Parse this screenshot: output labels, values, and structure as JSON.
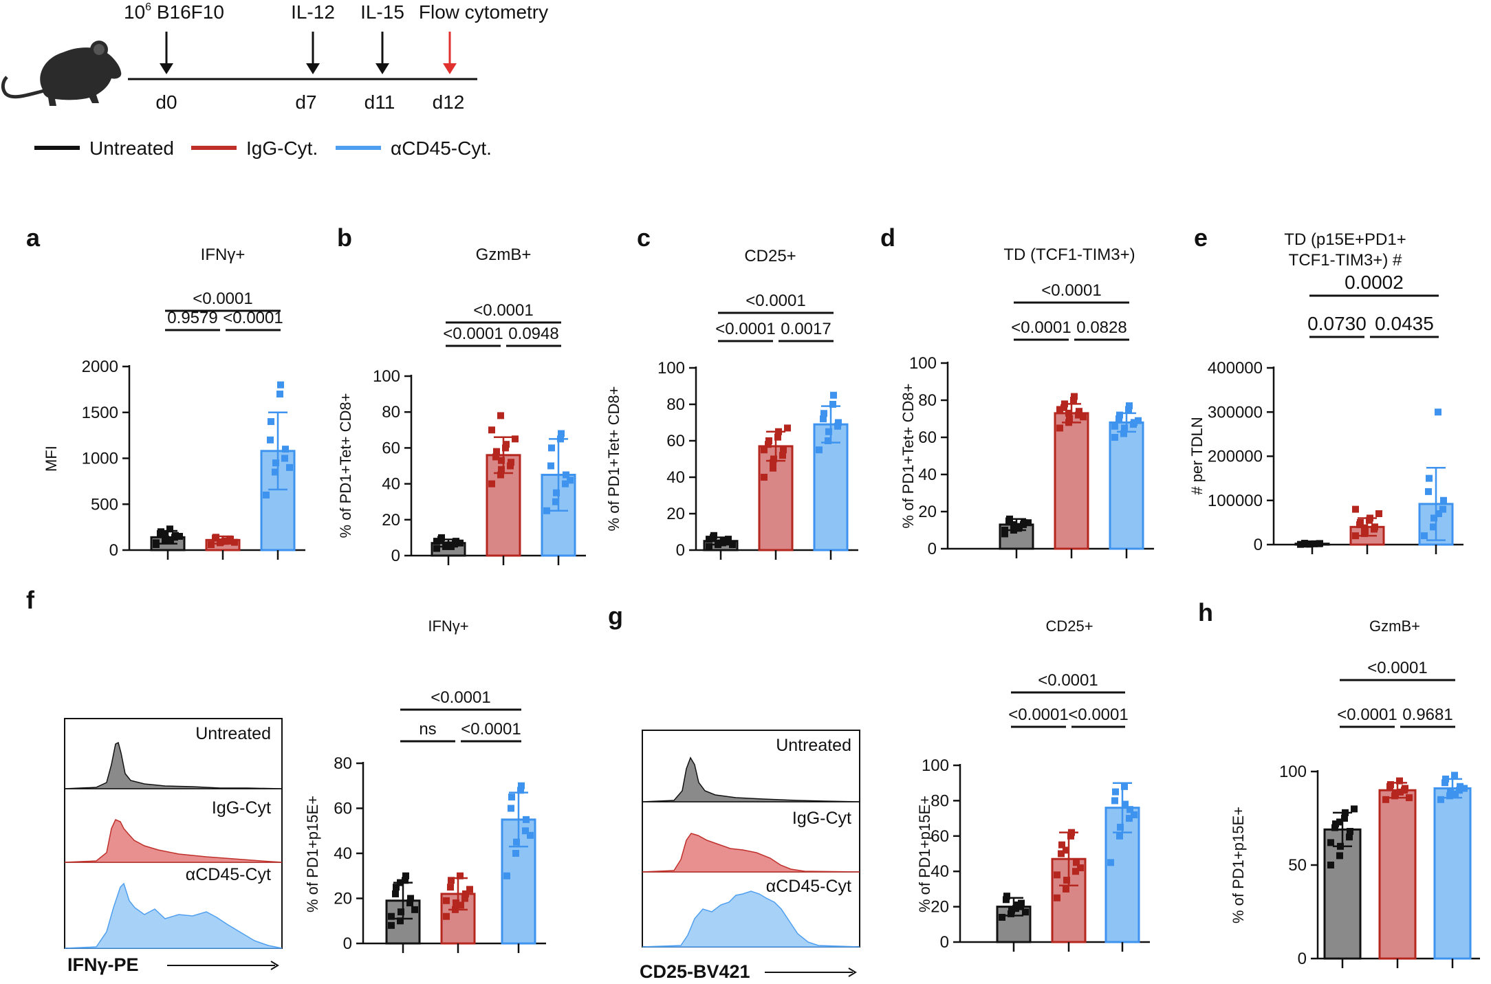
{
  "timeline": {
    "events": [
      {
        "label_base": "10",
        "label_sup": "6",
        "label_rest": " B16F10",
        "day": "d0",
        "color": "#111111"
      },
      {
        "label": "IL-12",
        "day": "d7",
        "color": "#111111"
      },
      {
        "label": "IL-15",
        "day": "d11",
        "color": "#111111"
      },
      {
        "label": "Flow cytometry",
        "day": "d12",
        "color": "#e0312f"
      }
    ]
  },
  "legend": [
    {
      "name": "Untreated",
      "color": "#111111"
    },
    {
      "name": "IgG-Cyt.",
      "color": "#c0302b"
    },
    {
      "name": "αCD45-Cyt.",
      "color": "#4f9ff0"
    }
  ],
  "colors": {
    "untreated_fill": "#8a8a8a",
    "untreated_edge": "#111111",
    "igg_fill": "#d98686",
    "igg_edge": "#b5261f",
    "acd45_fill": "#8ec3f5",
    "acd45_edge": "#3d93ee"
  },
  "histograms": [
    {
      "panel": "f",
      "labels": [
        "Untreated",
        "IgG-Cyt",
        "αCD45-Cyt"
      ],
      "xlabel": "IFNγ-PE"
    },
    {
      "panel": "g",
      "labels": [
        "Untreated",
        "IgG-Cyt",
        "αCD45-Cyt"
      ],
      "xlabel": "CD25-BV421"
    }
  ],
  "chart_data": [
    {
      "panel": "a",
      "type": "bar",
      "title": "IFNγ+",
      "title2": "",
      "ylabel": "MFI",
      "ylim": [
        0,
        2000
      ],
      "yticks": [
        "0",
        "500",
        "1000",
        "1500",
        "2000"
      ],
      "categories": [
        "Untreated",
        "IgG-Cyt.",
        "αCD45-Cyt."
      ],
      "values": [
        140,
        110,
        1080
      ],
      "errors": [
        70,
        40,
        420
      ],
      "points": [
        [
          80,
          100,
          120,
          140,
          160,
          180,
          200,
          230,
          110,
          150,
          60,
          175
        ],
        [
          60,
          80,
          90,
          110,
          120,
          130,
          140,
          100,
          95,
          85
        ],
        [
          600,
          850,
          950,
          1000,
          1100,
          1200,
          1400,
          1700,
          1800,
          900
        ]
      ],
      "pvalues": [
        {
          "from": 0,
          "to": 2,
          "label": "<0.0001"
        },
        {
          "from": 0,
          "to": 1,
          "label": "0.9579"
        },
        {
          "from": 1,
          "to": 2,
          "label": "<0.0001"
        }
      ]
    },
    {
      "panel": "b",
      "type": "bar",
      "title": "GzmB+",
      "title2": "",
      "ylabel": "% of PD1+Tet+ CD8+",
      "ylim": [
        0,
        100
      ],
      "yticks": [
        "0",
        "20",
        "40",
        "60",
        "80",
        "100"
      ],
      "categories": [
        "Untreated",
        "IgG-Cyt.",
        "αCD45-Cyt."
      ],
      "values": [
        7,
        56,
        45
      ],
      "errors": [
        2,
        10,
        20
      ],
      "points": [
        [
          4,
          5,
          6,
          7,
          8,
          9,
          10,
          6,
          5,
          7,
          8
        ],
        [
          40,
          45,
          48,
          50,
          52,
          55,
          58,
          60,
          62,
          65,
          70,
          78,
          53
        ],
        [
          25,
          30,
          35,
          40,
          45,
          50,
          60,
          65,
          68,
          42
        ]
      ],
      "pvalues": [
        {
          "from": 0,
          "to": 2,
          "label": "<0.0001"
        },
        {
          "from": 0,
          "to": 1,
          "label": "<0.0001"
        },
        {
          "from": 1,
          "to": 2,
          "label": "0.0948"
        }
      ]
    },
    {
      "panel": "c",
      "type": "bar",
      "title": "CD25+",
      "title2": "",
      "ylabel": "% of PD1+Tet+ CD8+",
      "ylim": [
        0,
        100
      ],
      "yticks": [
        "0",
        "20",
        "40",
        "60",
        "80",
        "100"
      ],
      "categories": [
        "Untreated",
        "IgG-Cyt.",
        "αCD45-Cyt."
      ],
      "values": [
        5,
        57,
        69
      ],
      "errors": [
        2,
        8,
        10
      ],
      "points": [
        [
          2,
          3,
          4,
          5,
          6,
          7,
          8,
          4,
          5,
          3,
          6
        ],
        [
          40,
          45,
          50,
          52,
          55,
          58,
          60,
          62,
          65,
          67,
          55,
          48
        ],
        [
          55,
          60,
          65,
          68,
          70,
          72,
          75,
          80,
          85
        ]
      ],
      "pvalues": [
        {
          "from": 0,
          "to": 2,
          "label": "<0.0001"
        },
        {
          "from": 0,
          "to": 1,
          "label": "<0.0001"
        },
        {
          "from": 1,
          "to": 2,
          "label": "0.0017"
        }
      ]
    },
    {
      "panel": "d",
      "type": "bar",
      "title": "TD (TCF1-TIM3+)",
      "title2": "",
      "ylabel": "% of PD1+Tet+ CD8+",
      "ylim": [
        0,
        100
      ],
      "yticks": [
        "0",
        "20",
        "40",
        "60",
        "80",
        "100"
      ],
      "categories": [
        "Untreated",
        "IgG-Cyt.",
        "αCD45-Cyt."
      ],
      "values": [
        13,
        73,
        68
      ],
      "errors": [
        3,
        5,
        5
      ],
      "points": [
        [
          8,
          10,
          12,
          13,
          14,
          15,
          16,
          11,
          12,
          14,
          10,
          13
        ],
        [
          65,
          68,
          70,
          72,
          74,
          76,
          78,
          80,
          82,
          71,
          75,
          73
        ],
        [
          60,
          62,
          65,
          67,
          68,
          70,
          72,
          75,
          77,
          69,
          66
        ]
      ],
      "pvalues": [
        {
          "from": 0,
          "to": 2,
          "label": "<0.0001"
        },
        {
          "from": 0,
          "to": 1,
          "label": "<0.0001"
        },
        {
          "from": 1,
          "to": 2,
          "label": "0.0828"
        }
      ]
    },
    {
      "panel": "e",
      "type": "bar",
      "title": "TD (p15E+PD1+",
      "title2": "TCF1-TIM3+) #",
      "ylabel": "# per TDLN",
      "ylim": [
        0,
        400000
      ],
      "yticks": [
        "0",
        "100000",
        "200000",
        "300000",
        "400000"
      ],
      "categories": [
        "Untreated",
        "IgG-Cyt.",
        "αCD45-Cyt."
      ],
      "values": [
        2000,
        40000,
        92000
      ],
      "errors": [
        1000,
        20000,
        82000
      ],
      "points": [
        [
          500,
          1000,
          1500,
          2000,
          2500,
          3000,
          1200,
          1800
        ],
        [
          20000,
          25000,
          30000,
          35000,
          40000,
          45000,
          50000,
          55000,
          60000,
          70000,
          80000,
          38000
        ],
        [
          20000,
          40000,
          60000,
          80000,
          100000,
          120000,
          150000,
          300000,
          70000
        ]
      ],
      "pvalues": [
        {
          "from": 0,
          "to": 2,
          "label": "0.0002"
        },
        {
          "from": 0,
          "to": 1,
          "label": "0.0730"
        },
        {
          "from": 1,
          "to": 2,
          "label": "0.0435"
        }
      ]
    },
    {
      "panel": "f",
      "type": "bar",
      "title": "IFNγ+",
      "title2": "",
      "ylabel": "% of PD1+p15E+",
      "ylim": [
        0,
        80
      ],
      "yticks": [
        "0",
        "20",
        "40",
        "60",
        "80"
      ],
      "categories": [
        "Untreated",
        "IgG-Cyt.",
        "αCD45-Cyt."
      ],
      "values": [
        19,
        22,
        55
      ],
      "errors": [
        8,
        7,
        12
      ],
      "points": [
        [
          8,
          10,
          14,
          18,
          20,
          22,
          25,
          28,
          30,
          15,
          12,
          27
        ],
        [
          12,
          15,
          18,
          20,
          22,
          25,
          28,
          30,
          17,
          24,
          19
        ],
        [
          30,
          40,
          45,
          50,
          55,
          60,
          65,
          68,
          70,
          48
        ]
      ],
      "pvalues": [
        {
          "from": 0,
          "to": 2,
          "label": "<0.0001"
        },
        {
          "from": 0,
          "to": 1,
          "label": "ns"
        },
        {
          "from": 1,
          "to": 2,
          "label": "<0.0001"
        }
      ]
    },
    {
      "panel": "g",
      "type": "bar",
      "title": "CD25+",
      "title2": "",
      "ylabel": "% of PD1+p15E+",
      "ylim": [
        0,
        100
      ],
      "yticks": [
        "0",
        "20",
        "40",
        "60",
        "80",
        "100"
      ],
      "categories": [
        "Untreated",
        "IgG-Cyt.",
        "αCD45-Cyt."
      ],
      "values": [
        20,
        47,
        76
      ],
      "errors": [
        5,
        15,
        14
      ],
      "points": [
        [
          14,
          16,
          18,
          20,
          22,
          24,
          26,
          19,
          21,
          17
        ],
        [
          25,
          30,
          35,
          40,
          45,
          50,
          55,
          60,
          62,
          42,
          38,
          52
        ],
        [
          45,
          60,
          65,
          70,
          75,
          80,
          85,
          88,
          78,
          72
        ]
      ],
      "pvalues": [
        {
          "from": 0,
          "to": 2,
          "label": "<0.0001"
        },
        {
          "from": 0,
          "to": 1,
          "label": "<0.0001"
        },
        {
          "from": 1,
          "to": 2,
          "label": "<0.0001"
        }
      ]
    },
    {
      "panel": "h",
      "type": "bar",
      "title": "GzmB+",
      "title2": "",
      "ylabel": "% of PD1+p15E+",
      "ylim": [
        0,
        100
      ],
      "yticks": [
        "0",
        "50",
        "100"
      ],
      "categories": [
        "Untreated",
        "IgG-Cyt.",
        "αCD45-Cyt."
      ],
      "values": [
        69,
        90,
        91
      ],
      "errors": [
        9,
        4,
        5
      ],
      "points": [
        [
          50,
          55,
          60,
          65,
          68,
          70,
          72,
          75,
          78,
          80,
          62,
          73
        ],
        [
          85,
          87,
          88,
          90,
          91,
          92,
          93,
          95,
          89,
          86
        ],
        [
          85,
          87,
          89,
          90,
          92,
          94,
          96,
          98,
          88,
          91
        ]
      ],
      "pvalues": [
        {
          "from": 0,
          "to": 2,
          "label": "<0.0001"
        },
        {
          "from": 0,
          "to": 1,
          "label": "<0.0001"
        },
        {
          "from": 1,
          "to": 2,
          "label": "0.9681"
        }
      ]
    }
  ]
}
